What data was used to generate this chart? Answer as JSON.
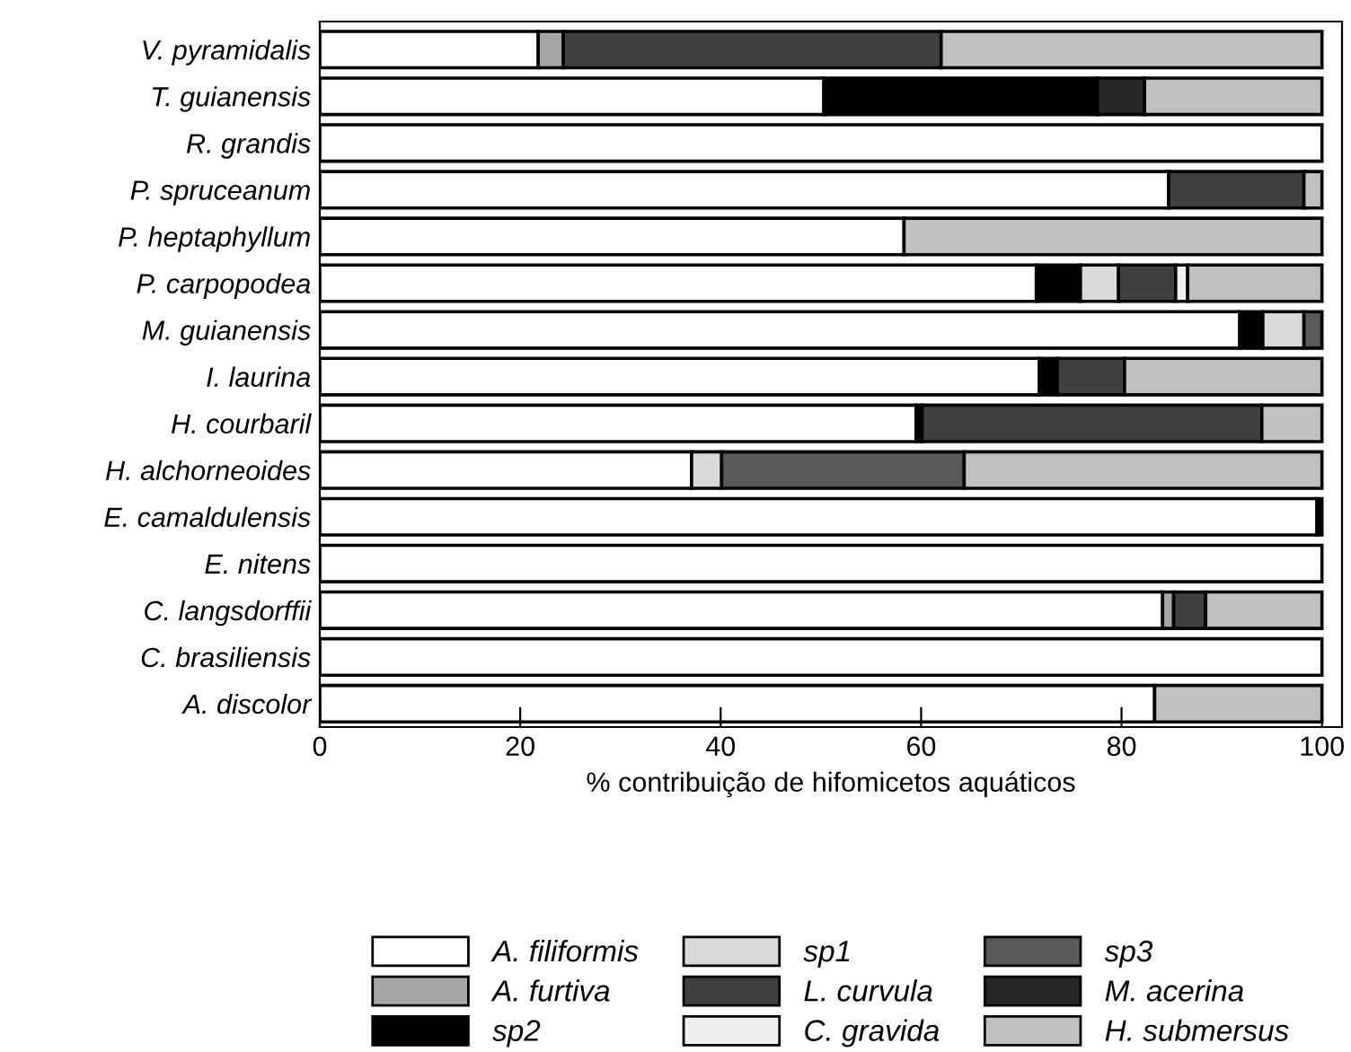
{
  "chart_data": {
    "type": "bar",
    "orientation": "horizontal",
    "stacked": true,
    "xlabel": "% contribuição de hifomicetos aquáticos",
    "xlim": [
      0,
      102
    ],
    "xticks": [
      0,
      20,
      40,
      60,
      80,
      100
    ],
    "grid": false,
    "legend": "bottom",
    "categories": [
      "V. pyramidalis",
      "T. guianensis",
      "R. grandis",
      "P. spruceanum",
      "P. heptaphyllum",
      "P. carpopodea",
      "M. guianensis",
      "I. laurina",
      "H. courbaril",
      "H. alchorneoides",
      "E. camaldulensis",
      "E. nitens",
      "C. langsdorffii",
      "C. brasiliensis",
      "A. discolor"
    ],
    "series": [
      {
        "name": "A. filiformis",
        "color": "#ffffff",
        "values": [
          21.8,
          50.3,
          100,
          84.7,
          58.3,
          71.5,
          91.8,
          71.8,
          59.5,
          37.1,
          99.5,
          100,
          84.1,
          100,
          83.3
        ]
      },
      {
        "name": "A. furtiva",
        "color": "#a6a6a6",
        "values": [
          2.5,
          null,
          null,
          null,
          null,
          null,
          null,
          null,
          null,
          null,
          null,
          null,
          1.1,
          null,
          null
        ]
      },
      {
        "name": "sp2",
        "color": "#000000",
        "values": [
          null,
          27.3,
          null,
          null,
          null,
          4.4,
          2.3,
          1.8,
          0.6,
          null,
          0.5,
          null,
          null,
          null,
          null
        ]
      },
      {
        "name": "sp1",
        "color": "#d9d9d9",
        "values": [
          null,
          null,
          null,
          null,
          null,
          3.8,
          4.1,
          null,
          null,
          3.0,
          null,
          null,
          null,
          null,
          null
        ]
      },
      {
        "name": "L. curvula",
        "color": "#404040",
        "values": [
          37.7,
          null,
          null,
          13.5,
          null,
          5.7,
          null,
          6.7,
          33.9,
          null,
          null,
          null,
          3.2,
          null,
          null
        ]
      },
      {
        "name": "C. gravida",
        "color": "#efefef",
        "values": [
          null,
          null,
          null,
          null,
          null,
          1.2,
          null,
          null,
          null,
          null,
          null,
          null,
          null,
          null,
          null
        ]
      },
      {
        "name": "sp3",
        "color": "#595959",
        "values": [
          null,
          null,
          null,
          null,
          null,
          null,
          1.8,
          null,
          null,
          24.2,
          null,
          null,
          null,
          null,
          null
        ]
      },
      {
        "name": "M. acerina",
        "color": "#262626",
        "values": [
          null,
          4.7,
          null,
          null,
          null,
          null,
          null,
          null,
          null,
          null,
          null,
          null,
          null,
          null,
          null
        ]
      },
      {
        "name": "H. submersus",
        "color": "#c0c0c0",
        "values": [
          38.0,
          17.7,
          null,
          1.8,
          41.7,
          13.4,
          null,
          19.7,
          6.0,
          35.7,
          null,
          null,
          11.6,
          null,
          16.7
        ]
      }
    ]
  }
}
